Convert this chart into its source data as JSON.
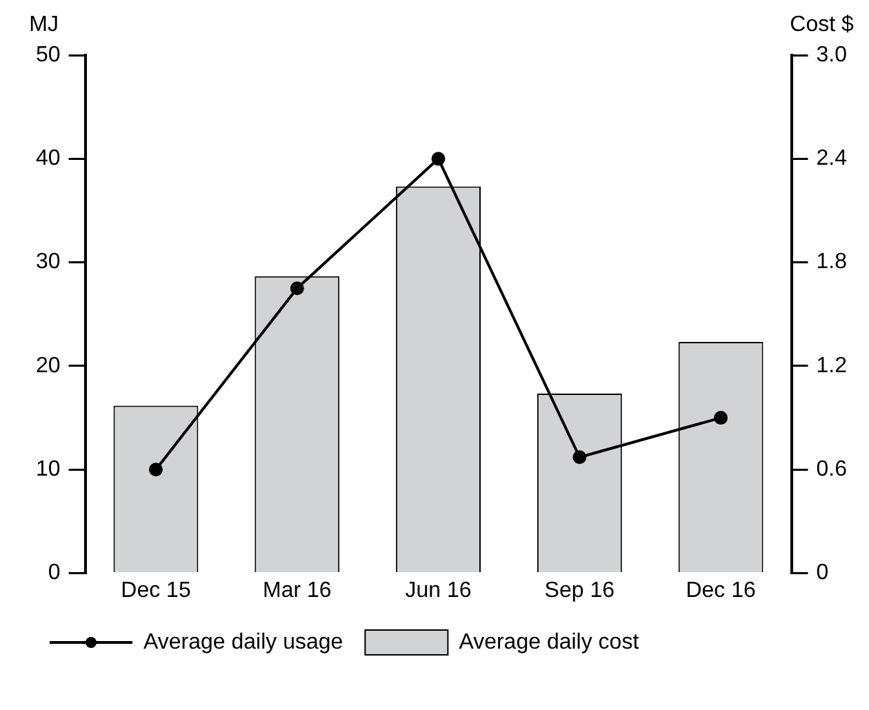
{
  "chart_data": {
    "type": "bar",
    "categories": [
      "Dec 15",
      "Mar 16",
      "Jun 16",
      "Sep 16",
      "Dec 16"
    ],
    "ylabel": "MJ",
    "y2label": "Cost $",
    "series": [
      {
        "name": "Average daily usage",
        "type": "line",
        "color": "#000000",
        "values": [
          10,
          27.5,
          40,
          11.2,
          15
        ],
        "marker": "circle"
      },
      {
        "name": "Average daily cost",
        "axis": "y2",
        "color": "#d2d3d5",
        "values": [
          0.97,
          1.72,
          2.24,
          1.04,
          1.34
        ]
      }
    ],
    "ylim": [
      0,
      50
    ],
    "yticks": [
      0,
      10,
      20,
      30,
      40,
      50
    ],
    "y2lim": [
      0,
      3
    ],
    "y2ticks": [
      0,
      0.6,
      1.2,
      1.8,
      2.4,
      {
        "value": 3,
        "label": "3.0"
      }
    ],
    "grid": false,
    "legend": "bottom"
  }
}
